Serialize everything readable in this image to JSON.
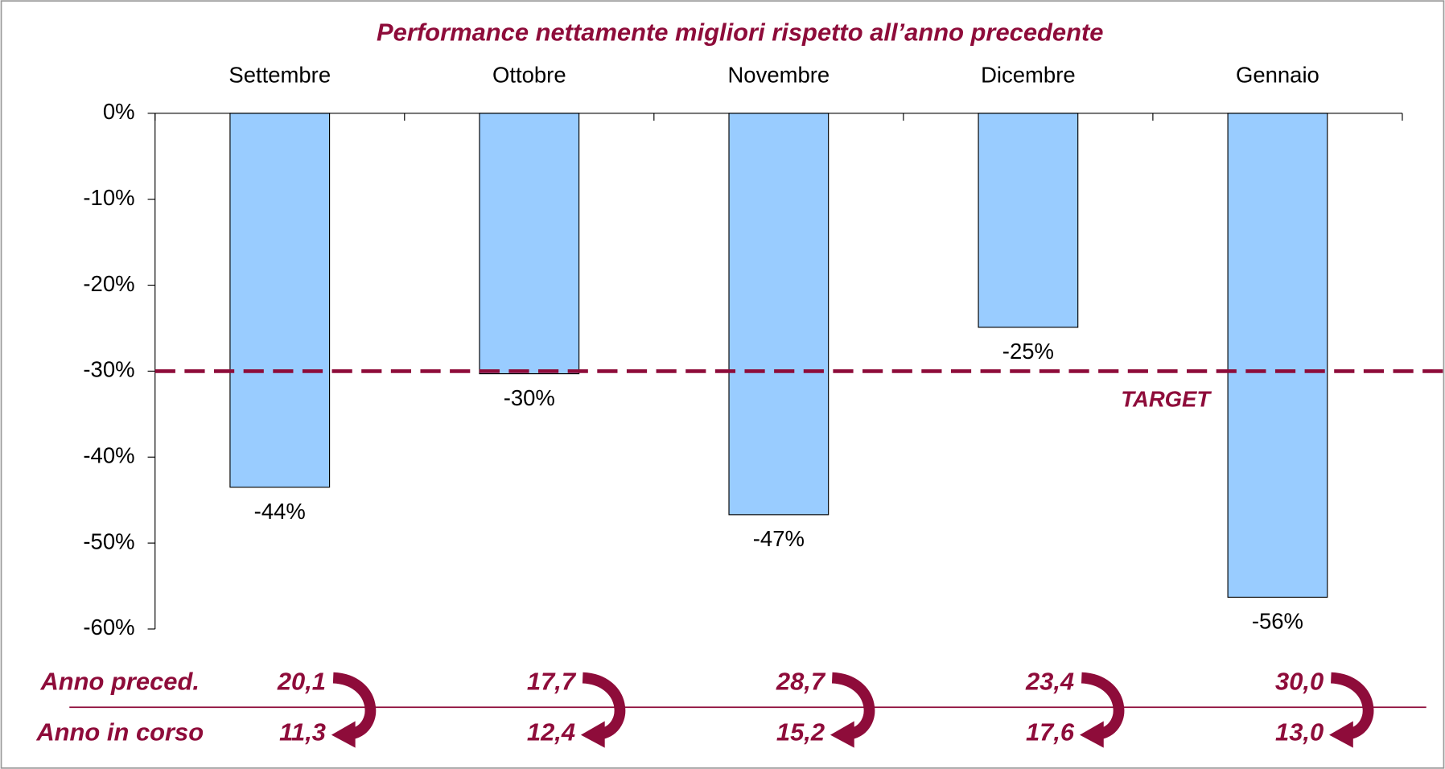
{
  "chart_data": {
    "type": "bar",
    "title": "Performance nettamente migliori rispetto all’anno precedente",
    "categories": [
      "Settembre",
      "Ottobre",
      "Novembre",
      "Dicembre",
      "Gennaio"
    ],
    "values": [
      -43.5,
      -30.3,
      -46.7,
      -24.9,
      -56.3
    ],
    "value_labels": [
      "-44%",
      "-30%",
      "-47%",
      "-25%",
      "-56%"
    ],
    "color": "#99ccff",
    "ylim": [
      -60,
      0
    ],
    "yticks": [
      {
        "value": 0,
        "label": "0%"
      },
      {
        "value": -10,
        "label": "-10%"
      },
      {
        "value": -20,
        "label": "-20%"
      },
      {
        "value": -30,
        "label": "-30%"
      },
      {
        "value": -40,
        "label": "-40%"
      },
      {
        "value": -50,
        "label": "-50%"
      },
      {
        "value": -60,
        "label": "-60%"
      }
    ],
    "target": {
      "value": -30,
      "label": "TARGET",
      "color": "#8e0c3a"
    }
  },
  "table": {
    "rows": [
      {
        "label": "Anno preced.",
        "values": [
          "20,1",
          "17,7",
          "28,7",
          "23,4",
          "30,0"
        ]
      },
      {
        "label": "Anno in corso",
        "values": [
          "11,3",
          "12,4",
          "15,2",
          "17,6",
          "13,0"
        ]
      }
    ]
  }
}
